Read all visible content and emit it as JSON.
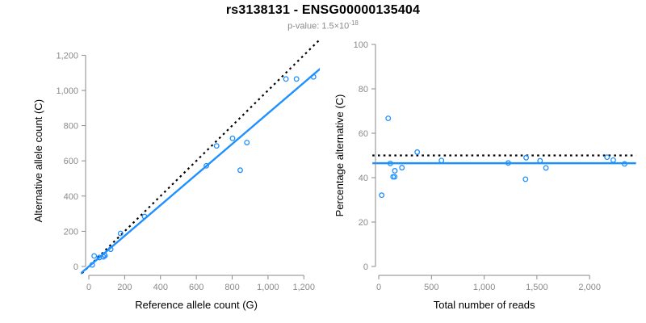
{
  "header": {
    "title": "rs3138131 - ENSG00000135404",
    "pvalue_prefix": "p-value: ",
    "pvalue_mantissa": "1.5×10",
    "pvalue_exponent": "-18"
  },
  "colors": {
    "accent_blue": "#1E90FF",
    "reference_line_black": "#000000",
    "axis_gray": "#8a8a8a",
    "axis_title_black": "#000000",
    "subtitle_gray": "#8a8a8a"
  },
  "chart_data": [
    {
      "type": "scatter",
      "name": "allele-count-scatter",
      "xlabel": "Reference allele count (G)",
      "ylabel": "Alternative allele count (C)",
      "xlim": [
        0,
        1262
      ],
      "ylim": [
        0,
        1262
      ],
      "xticks": [
        0,
        200,
        400,
        600,
        800,
        1000,
        1200
      ],
      "xtick_labels": [
        "0",
        "200",
        "400",
        "600",
        "800",
        "1,000",
        "1,200"
      ],
      "yticks": [
        0,
        200,
        400,
        600,
        800,
        1000,
        1200
      ],
      "ytick_labels": [
        "0",
        "200",
        "400",
        "600",
        "800",
        "1,000",
        "1,200"
      ],
      "grid": false,
      "legend": null,
      "points": [
        [
          19,
          9
        ],
        [
          30,
          60
        ],
        [
          59,
          51
        ],
        [
          81,
          55
        ],
        [
          87,
          66
        ],
        [
          90,
          61
        ],
        [
          122,
          98
        ],
        [
          177,
          188
        ],
        [
          311,
          284
        ],
        [
          656,
          572
        ],
        [
          713,
          685
        ],
        [
          802,
          728
        ],
        [
          845,
          547
        ],
        [
          882,
          704
        ],
        [
          1100,
          1065
        ],
        [
          1159,
          1065
        ],
        [
          1254,
          1077
        ]
      ],
      "lines": [
        {
          "name": "identity-50pct-line",
          "style": "dotted",
          "slope": 1,
          "intercept": 0,
          "color": "#000000"
        },
        {
          "name": "fit-line",
          "style": "solid",
          "slope": 0.87,
          "intercept": 0,
          "color": "#1E90FF"
        }
      ]
    },
    {
      "type": "scatter",
      "name": "percentage-alternative-scatter",
      "xlabel": "Total number of reads",
      "ylabel": "Percentage alternative (C)",
      "xlim": [
        0,
        2380
      ],
      "ylim": [
        0,
        100
      ],
      "xticks": [
        0,
        500,
        1000,
        1500,
        2000
      ],
      "xtick_labels": [
        "0",
        "500",
        "1,000",
        "1,500",
        "2,000"
      ],
      "yticks": [
        0,
        20,
        40,
        60,
        80,
        100
      ],
      "ytick_labels": [
        "0",
        "20",
        "40",
        "60",
        "80",
        "100"
      ],
      "grid": false,
      "legend": null,
      "points": [
        [
          28,
          32.1
        ],
        [
          90,
          66.7
        ],
        [
          110,
          46.4
        ],
        [
          136,
          40.4
        ],
        [
          151,
          40.4
        ],
        [
          153,
          43.1
        ],
        [
          220,
          44.5
        ],
        [
          365,
          51.5
        ],
        [
          595,
          47.7
        ],
        [
          1228,
          46.6
        ],
        [
          1392,
          39.3
        ],
        [
          1398,
          49.0
        ],
        [
          1530,
          47.6
        ],
        [
          1586,
          44.4
        ],
        [
          2165,
          49.2
        ],
        [
          2224,
          47.9
        ],
        [
          2331,
          46.2
        ]
      ],
      "lines": [
        {
          "name": "expected-50pct-line",
          "style": "dotted",
          "slope": 0,
          "intercept": 50,
          "color": "#000000"
        },
        {
          "name": "observed-pct-line",
          "style": "solid",
          "slope": 0,
          "intercept": 46.5,
          "color": "#1E90FF"
        }
      ]
    }
  ]
}
